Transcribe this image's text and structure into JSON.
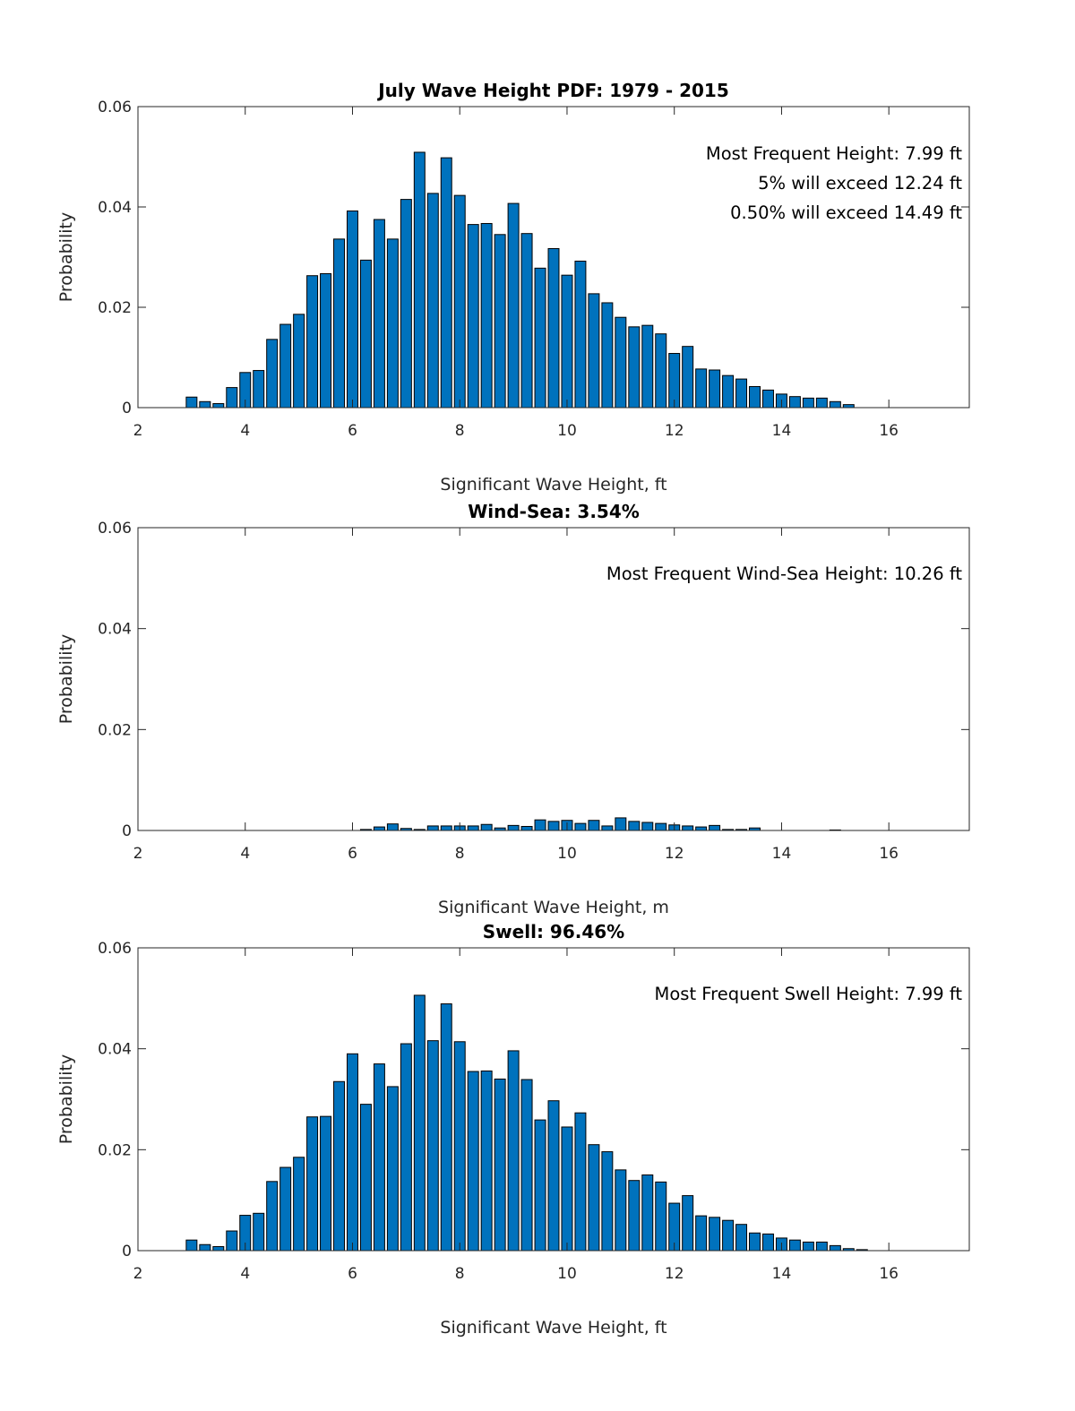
{
  "chart_data": [
    {
      "type": "bar",
      "title": "July Wave Height PDF: 1979 - 2015",
      "xlabel": "Significant Wave Height, ft",
      "ylabel": "Probability",
      "xlim": [
        2,
        17.5
      ],
      "ylim": [
        0,
        0.06
      ],
      "xticks": [
        "2",
        "4",
        "6",
        "8",
        "10",
        "12",
        "14",
        "16"
      ],
      "yticks": [
        "0",
        "0.02",
        "0.04",
        "0.06"
      ],
      "grid": false,
      "x": [
        3.0,
        3.25,
        3.5,
        3.75,
        4.0,
        4.25,
        4.5,
        4.75,
        5.0,
        5.25,
        5.5,
        5.75,
        6.0,
        6.25,
        6.5,
        6.75,
        7.0,
        7.25,
        7.5,
        7.75,
        8.0,
        8.25,
        8.5,
        8.75,
        9.0,
        9.25,
        9.5,
        9.75,
        10.0,
        10.25,
        10.5,
        10.75,
        11.0,
        11.25,
        11.5,
        11.75,
        12.0,
        12.25,
        12.5,
        12.75,
        13.0,
        13.25,
        13.5,
        13.75,
        14.0,
        14.25,
        14.5,
        14.75,
        15.0,
        15.25
      ],
      "values": [
        0.0021,
        0.0012,
        0.0008,
        0.004,
        0.007,
        0.0074,
        0.0136,
        0.0166,
        0.0186,
        0.0263,
        0.0267,
        0.0336,
        0.0392,
        0.0294,
        0.0375,
        0.0336,
        0.0415,
        0.0509,
        0.0427,
        0.0498,
        0.0423,
        0.0365,
        0.0367,
        0.0345,
        0.0407,
        0.0347,
        0.0278,
        0.0317,
        0.0264,
        0.0292,
        0.0227,
        0.0209,
        0.018,
        0.0161,
        0.0164,
        0.0147,
        0.0108,
        0.0122,
        0.0077,
        0.0075,
        0.0064,
        0.0057,
        0.0042,
        0.0035,
        0.0027,
        0.0022,
        0.0019,
        0.0019,
        0.0012,
        0.0006
      ],
      "annotations": [
        "Most Frequent Height: 7.99 ft",
        "5% will exceed 12.24 ft",
        "0.50% will exceed 14.49 ft"
      ]
    },
    {
      "type": "bar",
      "title": "Wind-Sea: 3.54%",
      "xlabel": "Significant Wave Height, m",
      "ylabel": "Probability",
      "xlim": [
        2,
        17.5
      ],
      "ylim": [
        0,
        0.06
      ],
      "xticks": [
        "2",
        "4",
        "6",
        "8",
        "10",
        "12",
        "14",
        "16"
      ],
      "yticks": [
        "0",
        "0.02",
        "0.04",
        "0.06"
      ],
      "grid": false,
      "x": [
        6.25,
        6.5,
        6.75,
        7.0,
        7.25,
        7.5,
        7.75,
        8.0,
        8.25,
        8.5,
        8.75,
        9.0,
        9.25,
        9.5,
        9.75,
        10.0,
        10.25,
        10.5,
        10.75,
        11.0,
        11.25,
        11.5,
        11.75,
        12.0,
        12.25,
        12.5,
        12.75,
        13.0,
        13.25,
        13.5,
        15.0
      ],
      "values": [
        0.0002,
        0.0007,
        0.0013,
        0.0004,
        0.0002,
        0.0009,
        0.0009,
        0.0009,
        0.0009,
        0.0012,
        0.0005,
        0.001,
        0.0008,
        0.0021,
        0.0018,
        0.002,
        0.0014,
        0.002,
        0.0009,
        0.0025,
        0.0018,
        0.0016,
        0.0014,
        0.0011,
        0.0009,
        0.0007,
        0.001,
        0.0002,
        0.0002,
        0.0005,
        0.0001
      ],
      "annotations": [
        "Most Frequent Wind-Sea Height: 10.26 ft"
      ]
    },
    {
      "type": "bar",
      "title": "Swell: 96.46%",
      "xlabel": "Significant Wave Height, ft",
      "ylabel": "Probability",
      "xlim": [
        2,
        17.5
      ],
      "ylim": [
        0,
        0.06
      ],
      "xticks": [
        "2",
        "4",
        "6",
        "8",
        "10",
        "12",
        "14",
        "16"
      ],
      "yticks": [
        "0",
        "0.02",
        "0.04",
        "0.06"
      ],
      "grid": false,
      "x": [
        3.0,
        3.25,
        3.5,
        3.75,
        4.0,
        4.25,
        4.5,
        4.75,
        5.0,
        5.25,
        5.5,
        5.75,
        6.0,
        6.25,
        6.5,
        6.75,
        7.0,
        7.25,
        7.5,
        7.75,
        8.0,
        8.25,
        8.5,
        8.75,
        9.0,
        9.25,
        9.5,
        9.75,
        10.0,
        10.25,
        10.5,
        10.75,
        11.0,
        11.25,
        11.5,
        11.75,
        12.0,
        12.25,
        12.5,
        12.75,
        13.0,
        13.25,
        13.5,
        13.75,
        14.0,
        14.25,
        14.5,
        14.75,
        15.0,
        15.25,
        15.5
      ],
      "values": [
        0.0021,
        0.0012,
        0.0008,
        0.0039,
        0.007,
        0.0074,
        0.0137,
        0.0165,
        0.0185,
        0.0265,
        0.0266,
        0.0335,
        0.039,
        0.029,
        0.037,
        0.0325,
        0.041,
        0.0506,
        0.0416,
        0.0489,
        0.0414,
        0.0355,
        0.0356,
        0.034,
        0.0396,
        0.0339,
        0.0259,
        0.0297,
        0.0245,
        0.0273,
        0.021,
        0.0196,
        0.016,
        0.0139,
        0.015,
        0.0136,
        0.0094,
        0.0109,
        0.0069,
        0.0066,
        0.006,
        0.0052,
        0.0035,
        0.0033,
        0.0025,
        0.0021,
        0.0017,
        0.0017,
        0.001,
        0.0004,
        0.0002
      ],
      "annotations": [
        "Most Frequent Swell Height: 7.99 ft"
      ]
    }
  ]
}
